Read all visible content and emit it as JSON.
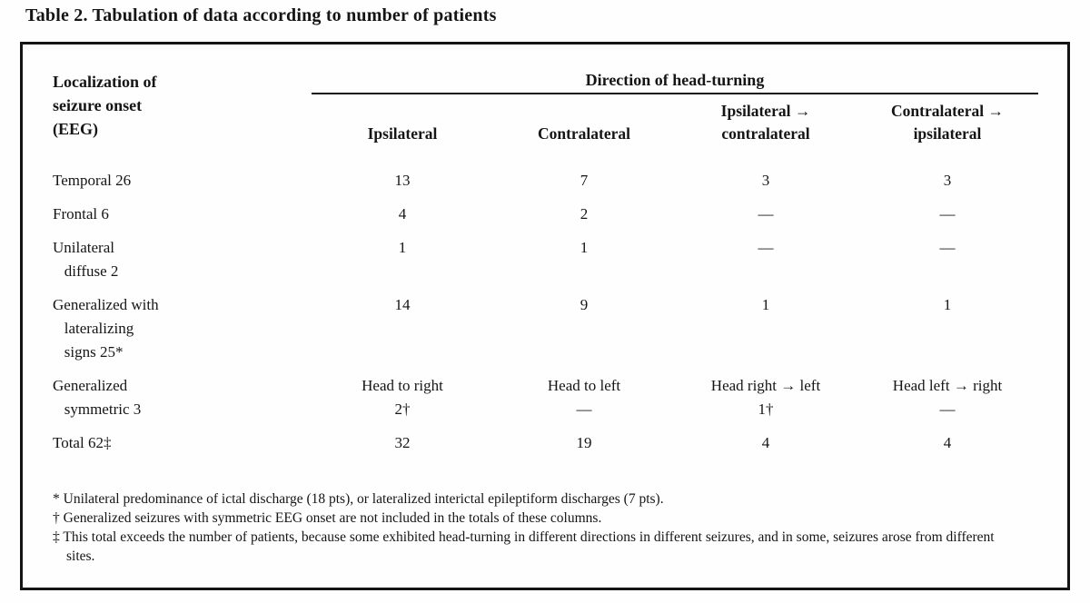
{
  "title": "Table 2. Tabulation of data according to number of patients",
  "table": {
    "corner_header": "Localization of\nseizure onset\n(EEG)",
    "spanner": "Direction of head-turning",
    "columns": [
      "Ipsilateral",
      "Contralateral",
      "Ipsilateral →\ncontralateral",
      "Contralateral →\nipsilateral"
    ],
    "rows": [
      {
        "label": "Temporal 26",
        "values": [
          "13",
          "7",
          "3",
          "3"
        ]
      },
      {
        "label": "Frontal 6",
        "values": [
          "4",
          "2",
          "—",
          "—"
        ]
      },
      {
        "label": "Unilateral\n   diffuse 2",
        "values": [
          "1",
          "1",
          "—",
          "—"
        ]
      },
      {
        "label": "Generalized with\n   lateralizing\n   signs 25*",
        "values": [
          "14",
          "9",
          "1",
          "1"
        ]
      },
      {
        "label": "Generalized\n   symmetric 3",
        "values": [
          "Head to right\n2†",
          "Head to left\n—",
          "Head right → left\n1†",
          "Head left → right\n—"
        ]
      },
      {
        "label": "Total 62‡",
        "values": [
          "32",
          "19",
          "4",
          "4"
        ]
      }
    ],
    "footnotes": [
      "* Unilateral predominance of ictal discharge (18 pts), or lateralized interictal epileptiform discharges (7 pts).",
      "† Generalized seizures with symmetric EEG onset are not included in the totals of these columns.",
      "‡ This total exceeds the number of patients, because some exhibited head-turning in different directions in different seizures, and in some, seizures arose from different sites."
    ]
  }
}
